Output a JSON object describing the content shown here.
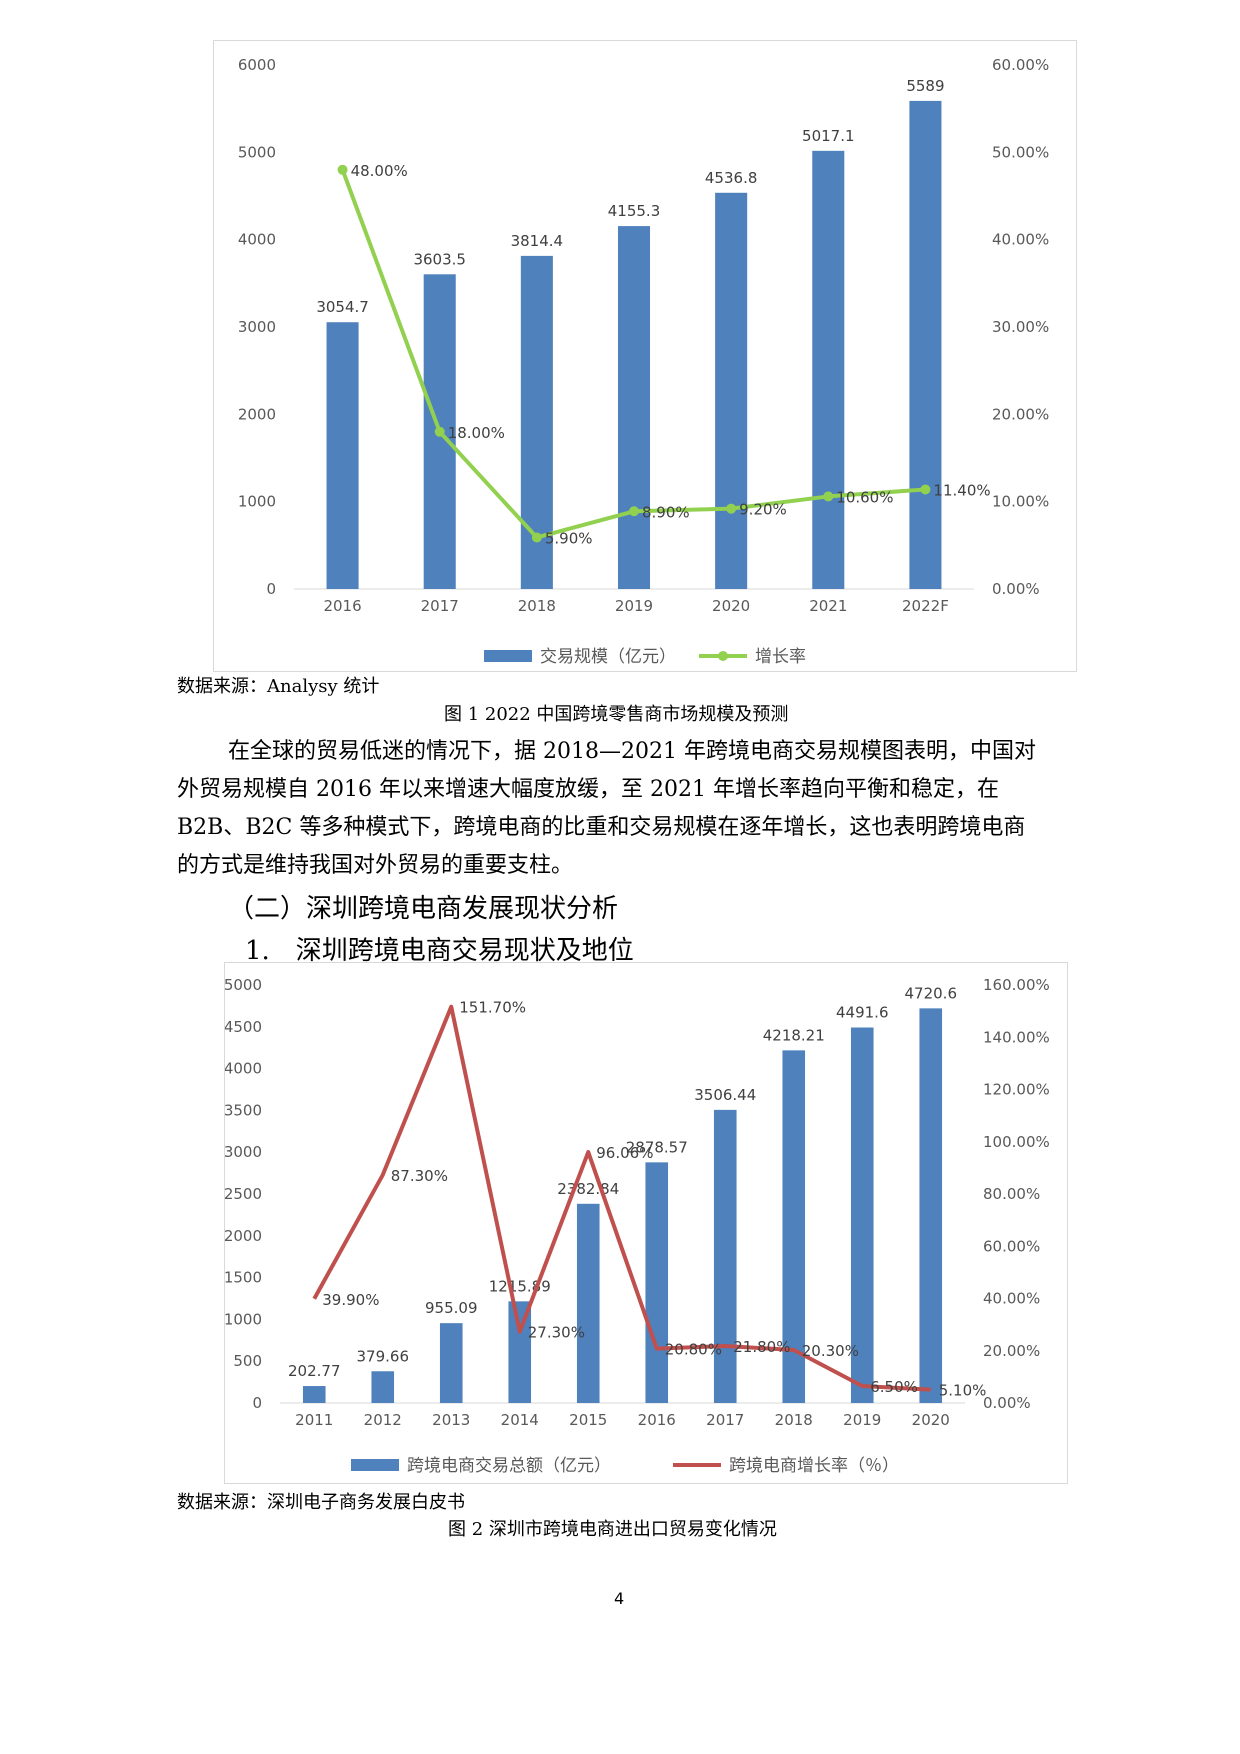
{
  "chart1": {
    "source": "数据来源：Analysy 统计",
    "caption": "图 1 2022 中国跨境零售商市场规模及预测",
    "chart_data": {
      "type": "bar",
      "categories": [
        "2016",
        "2017",
        "2018",
        "2019",
        "2020",
        "2021",
        "2022F"
      ],
      "series": [
        {
          "name": "交易规模（亿元）",
          "type": "bar",
          "axis": "left",
          "values": [
            3054.7,
            3603.5,
            3814.4,
            4155.3,
            4536.8,
            5017.1,
            5589
          ],
          "labels": [
            "3054.7",
            "3603.5",
            "3814.4",
            "4155.3",
            "4536.8",
            "5017.1",
            "5589"
          ],
          "color": "#4f81bd"
        },
        {
          "name": "增长率",
          "type": "line",
          "axis": "right",
          "values": [
            48.0,
            18.0,
            5.9,
            8.9,
            9.2,
            10.6,
            11.4
          ],
          "labels": [
            "48.00%",
            "18.00%",
            "5.90%",
            "8.90%",
            "9.20%",
            "10.60%",
            "11.40%"
          ],
          "color": "#92d050"
        }
      ],
      "ylim_left": [
        0,
        6000
      ],
      "yticks_left": [
        "0",
        "1000",
        "2000",
        "3000",
        "4000",
        "5000",
        "6000"
      ],
      "ylim_right": [
        0,
        60
      ],
      "yticks_right": [
        "0.00%",
        "10.00%",
        "20.00%",
        "30.00%",
        "40.00%",
        "50.00%",
        "60.00%"
      ],
      "legend_position": "bottom",
      "grid": false
    }
  },
  "body": {
    "paragraph_lines": [
      "在全球的贸易低迷的情况下，据 2018—2021 年跨境电商交易规模图表明，中国对",
      "外贸易规模自 2016 年以来增速大幅度放缓，至 2021 年增长率趋向平衡和稳定，在",
      "B2B、B2C 等多种模式下，跨境电商的比重和交易规模在逐年增长，这也表明跨境电商",
      "的方式是维持我国对外贸易的重要支柱。"
    ],
    "heading1": "（二）深圳跨境电商发展现状分析",
    "heading2": "1.　深圳跨境电商交易现状及地位"
  },
  "chart2": {
    "source": "数据来源：深圳电子商务发展白皮书",
    "caption": "图 2 深圳市跨境电商进出口贸易变化情况",
    "chart_data": {
      "type": "bar",
      "categories": [
        "2011",
        "2012",
        "2013",
        "2014",
        "2015",
        "2016",
        "2017",
        "2018",
        "2019",
        "2020"
      ],
      "series": [
        {
          "name": "跨境电商交易总额（亿元）",
          "type": "bar",
          "axis": "left",
          "values": [
            202.77,
            379.66,
            955.09,
            1215.89,
            2382.84,
            2878.57,
            3506.44,
            4218.21,
            4491.6,
            4720.6
          ],
          "labels": [
            "202.77",
            "379.66",
            "955.09",
            "1215.89",
            "2382.84",
            "2878.57",
            "3506.44",
            "4218.21",
            "4491.6",
            "4720.6"
          ],
          "color": "#4f81bd"
        },
        {
          "name": "跨境电商增长率（％）",
          "type": "line",
          "axis": "right",
          "values": [
            39.9,
            87.3,
            151.7,
            27.3,
            96.06,
            20.8,
            21.8,
            20.3,
            6.5,
            5.1
          ],
          "labels": [
            "39.90%",
            "87.30%",
            "151.70%",
            "27.30%",
            "96.06%",
            "20.80%",
            "21.80%",
            "20.30%",
            "6.50%",
            "5.10%"
          ],
          "color": "#c0504d"
        }
      ],
      "ylim_left": [
        0,
        5000
      ],
      "yticks_left": [
        "0",
        "500",
        "1000",
        "1500",
        "2000",
        "2500",
        "3000",
        "3500",
        "4000",
        "4500",
        "5000"
      ],
      "ylim_right": [
        0,
        160
      ],
      "yticks_right": [
        "0.00%",
        "20.00%",
        "40.00%",
        "60.00%",
        "80.00%",
        "100.00%",
        "120.00%",
        "140.00%",
        "160.00%"
      ],
      "legend_position": "bottom",
      "grid": false
    }
  },
  "page_number": "4"
}
